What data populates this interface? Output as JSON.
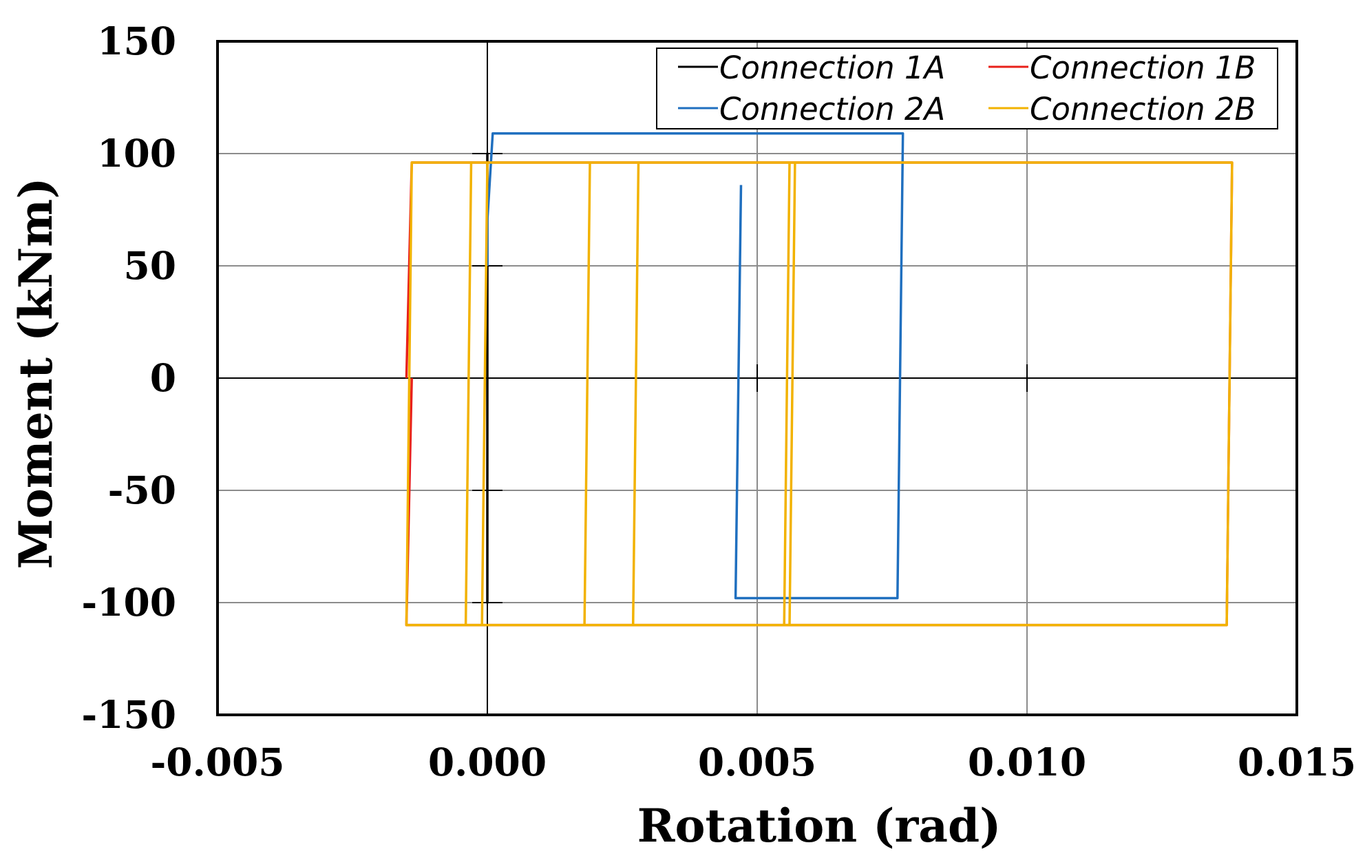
{
  "chart_data": {
    "type": "line",
    "title": "",
    "xlabel": "Rotation (rad)",
    "ylabel": "Moment (kNm)",
    "xlim": [
      -0.005,
      0.015
    ],
    "ylim": [
      -150,
      150
    ],
    "xticks": [
      -0.005,
      0.0,
      0.005,
      0.01,
      0.015
    ],
    "xtick_labels": [
      "-0.005",
      "0.000",
      "0.005",
      "0.010",
      "0.015"
    ],
    "yticks": [
      150,
      100,
      50,
      0,
      -50,
      -100,
      -150
    ],
    "ytick_labels": [
      "150",
      "100",
      "50",
      "0",
      "-50",
      "-100",
      "-150"
    ],
    "grid": true,
    "legend_position": "top-right",
    "series": [
      {
        "name": "Connection 1A",
        "color": "#000000",
        "points": [
          [
            0.0,
            0
          ],
          [
            0.0,
            100
          ],
          [
            0.0,
            0
          ],
          [
            0.0,
            -100
          ],
          [
            0.0,
            0
          ]
        ]
      },
      {
        "name": "Connection 1B",
        "color": "#e8201a",
        "points": [
          [
            -0.0015,
            0
          ],
          [
            -0.0014,
            96
          ],
          [
            0.0138,
            96
          ],
          [
            0.0137,
            -110
          ],
          [
            -0.0015,
            -110
          ],
          [
            -0.0014,
            0
          ]
        ]
      },
      {
        "name": "Connection 2A",
        "color": "#1f6fbf",
        "points": [
          [
            0.0047,
            86
          ],
          [
            0.0046,
            -98
          ],
          [
            0.0076,
            -98
          ],
          [
            0.0077,
            109
          ],
          [
            0.0001,
            109
          ],
          [
            0.0,
            70
          ],
          [
            0.0,
            50
          ]
        ]
      },
      {
        "name": "Connection 2B",
        "color": "#f2b200",
        "points": [
          [
            -0.0015,
            -110
          ],
          [
            -0.0014,
            96
          ],
          [
            0.0138,
            96
          ],
          [
            0.0137,
            -110
          ],
          [
            -0.0015,
            -110
          ],
          [
            -0.0004,
            -110
          ],
          [
            -0.0003,
            96
          ],
          [
            0.0,
            96
          ],
          [
            -0.0001,
            -110
          ],
          [
            0.0018,
            -110
          ],
          [
            0.0019,
            96
          ],
          [
            0.0028,
            96
          ],
          [
            0.0027,
            -110
          ],
          [
            0.0055,
            -110
          ],
          [
            0.0056,
            96
          ],
          [
            0.0057,
            96
          ],
          [
            0.0056,
            -110
          ]
        ]
      }
    ]
  }
}
